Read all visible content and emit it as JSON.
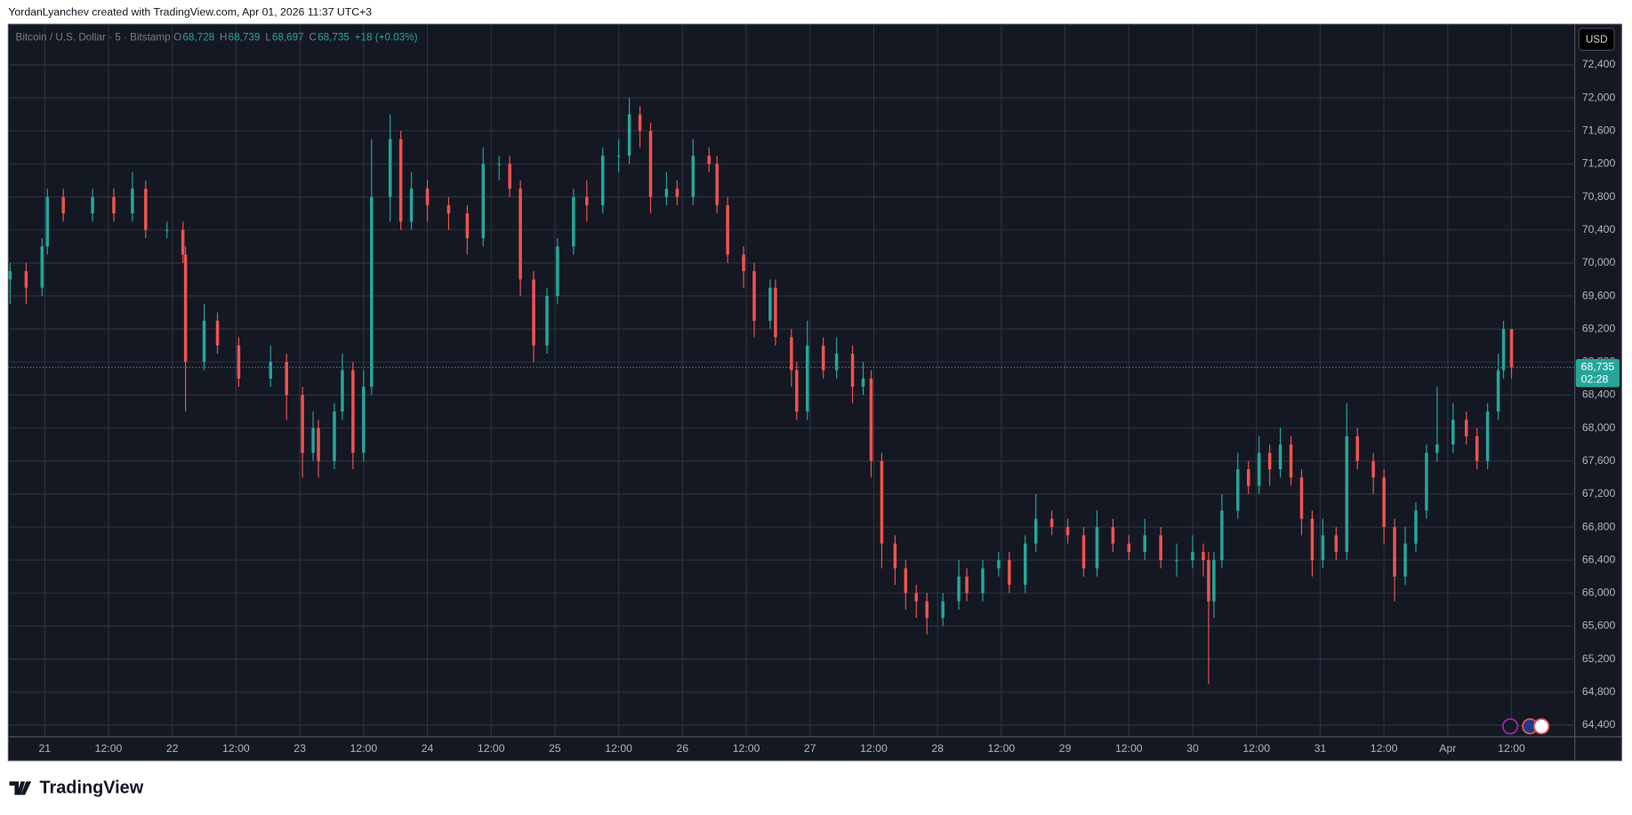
{
  "header": {
    "attribution": "YordanLyanchev created with TradingView.com, Apr 01, 2026 11:37 UTC+3",
    "symbol": "Bitcoin / U.S. Dollar · 5 · Bitstamp",
    "ohlc": [
      {
        "key": "O",
        "value": "68,728"
      },
      {
        "key": "H",
        "value": "68,739"
      },
      {
        "key": "L",
        "value": "68,697"
      },
      {
        "key": "C",
        "value": "68,735"
      }
    ],
    "change": "+18 (+0.03%)",
    "currency": "USD"
  },
  "footer": {
    "logo": "TradingView"
  },
  "chart_data": {
    "type": "candlestick",
    "up_color": "#26a69a",
    "down_color": "#ef5350",
    "grid": true,
    "xlim": [
      -6.85,
      287.9
    ],
    "ylim": [
      64260,
      72880
    ],
    "xticks": [
      {
        "value": 0,
        "label": "21"
      },
      {
        "value": 12,
        "label": "12:00"
      },
      {
        "value": 24,
        "label": "22"
      },
      {
        "value": 36,
        "label": "12:00"
      },
      {
        "value": 48,
        "label": "23"
      },
      {
        "value": 60,
        "label": "12:00"
      },
      {
        "value": 72,
        "label": "24"
      },
      {
        "value": 84,
        "label": "12:00"
      },
      {
        "value": 96,
        "label": "25"
      },
      {
        "value": 108,
        "label": "12:00"
      },
      {
        "value": 120,
        "label": "26"
      },
      {
        "value": 132,
        "label": "12:00"
      },
      {
        "value": 144,
        "label": "27"
      },
      {
        "value": 156,
        "label": "12:00"
      },
      {
        "value": 168,
        "label": "28"
      },
      {
        "value": 180,
        "label": "12:00"
      },
      {
        "value": 192,
        "label": "29"
      },
      {
        "value": 204,
        "label": "12:00"
      },
      {
        "value": 216,
        "label": "30"
      },
      {
        "value": 228,
        "label": "12:00"
      },
      {
        "value": 240,
        "label": "31"
      },
      {
        "value": 252,
        "label": "12:00"
      },
      {
        "value": 264,
        "label": "Apr"
      },
      {
        "value": 276,
        "label": "12:00"
      }
    ],
    "yticks": [
      {
        "value": 64400,
        "label": "64,400"
      },
      {
        "value": 64800,
        "label": "64,800"
      },
      {
        "value": 65200,
        "label": "65,200"
      },
      {
        "value": 65600,
        "label": "65,600"
      },
      {
        "value": 66000,
        "label": "66,000"
      },
      {
        "value": 66400,
        "label": "66,400"
      },
      {
        "value": 66800,
        "label": "66,800"
      },
      {
        "value": 67200,
        "label": "67,200"
      },
      {
        "value": 67600,
        "label": "67,600"
      },
      {
        "value": 68000,
        "label": "68,000"
      },
      {
        "value": 68400,
        "label": "68,400"
      },
      {
        "value": 68800,
        "label": "68,800"
      },
      {
        "value": 69200,
        "label": "69,200"
      },
      {
        "value": 69600,
        "label": "69,600"
      },
      {
        "value": 70000,
        "label": "70,000"
      },
      {
        "value": 70400,
        "label": "70,400"
      },
      {
        "value": 70800,
        "label": "70,800"
      },
      {
        "value": 71200,
        "label": "71,200"
      },
      {
        "value": 71600,
        "label": "71,600"
      },
      {
        "value": 72000,
        "label": "72,000"
      },
      {
        "value": 72400,
        "label": "72,400"
      }
    ],
    "last_price": {
      "value": 68735,
      "label": "68,735"
    },
    "countdown": "02:28",
    "x": [
      -6.5,
      -3.5,
      -0.5,
      0.5,
      3.5,
      9,
      13,
      16.5,
      19,
      23,
      26,
      26.5,
      30,
      32.5,
      36.5,
      42.5,
      45.5,
      48.5,
      50.5,
      51.5,
      54.5,
      56,
      58,
      60,
      61.5,
      65,
      67,
      69,
      72,
      76,
      79.5,
      82.5,
      85.5,
      87.5,
      89.5,
      92,
      94.5,
      96.5,
      99.5,
      102,
      105,
      108,
      110,
      112,
      114,
      117,
      119,
      122,
      125,
      126.5,
      128.5,
      131.5,
      133.5,
      136.5,
      137.5,
      140.5,
      141.5,
      143.5,
      146.5,
      149,
      152,
      154,
      155.5,
      157.5,
      160,
      162,
      164,
      166,
      169,
      172,
      173.5,
      176.5,
      179.5,
      181.5,
      184.5,
      186.5,
      189.5,
      192.5,
      195.5,
      198,
      201,
      204,
      207,
      210,
      213,
      216,
      218,
      219,
      220,
      221.5,
      224.5,
      226.5,
      228.5,
      230.5,
      232.5,
      234.5,
      236.5,
      238.5,
      240.5,
      243,
      245,
      247,
      250,
      252,
      254,
      256,
      258,
      260,
      262,
      265,
      267.5,
      269.5,
      271.5,
      273.5,
      274.5,
      276
    ],
    "open": [
      69800,
      69900,
      69700,
      70200,
      70800,
      70600,
      70800,
      70600,
      70900,
      70400,
      70400,
      70100,
      68800,
      69300,
      69000,
      68600,
      68800,
      68400,
      67700,
      68000,
      67600,
      68200,
      68700,
      67700,
      68500,
      70800,
      71500,
      70500,
      70900,
      70700,
      70600,
      70300,
      71200,
      71200,
      70900,
      69800,
      69000,
      69600,
      70200,
      70800,
      70700,
      71300,
      71300,
      71800,
      71600,
      70800,
      70900,
      70800,
      71300,
      71200,
      70700,
      70100,
      69900,
      69300,
      69700,
      69100,
      68700,
      68200,
      69000,
      68700,
      68900,
      68500,
      68600,
      67600,
      66600,
      66300,
      66000,
      65900,
      65700,
      65900,
      66200,
      66000,
      66300,
      66400,
      66100,
      66600,
      66900,
      66800,
      66700,
      66300,
      66800,
      66600,
      66500,
      66700,
      66400,
      66400,
      66500,
      66400,
      65900,
      66400,
      67000,
      67500,
      67300,
      67700,
      67500,
      67800,
      67400,
      66900,
      66400,
      66700,
      66500,
      67900,
      67600,
      67400,
      66800,
      66200,
      66600,
      67000,
      67700,
      67800,
      68100,
      67900,
      67600,
      68200,
      68700,
      69200
    ],
    "high": [
      70000,
      70000,
      70300,
      70900,
      70900,
      70900,
      70900,
      71100,
      71000,
      70500,
      70500,
      70200,
      69500,
      69400,
      69100,
      69000,
      68900,
      68500,
      68200,
      68100,
      68300,
      68900,
      68800,
      68700,
      71500,
      71800,
      71600,
      71100,
      71000,
      70800,
      70700,
      71400,
      71300,
      71300,
      71000,
      69900,
      69700,
      70300,
      70900,
      71000,
      71400,
      71500,
      72000,
      71900,
      71700,
      71100,
      71000,
      71500,
      71400,
      71300,
      70800,
      70200,
      70000,
      69800,
      69800,
      69200,
      68800,
      69300,
      69100,
      69100,
      69000,
      68800,
      68700,
      67700,
      66700,
      66400,
      66100,
      66000,
      66000,
      66400,
      66300,
      66400,
      66500,
      66500,
      66700,
      67200,
      67000,
      66900,
      66800,
      67000,
      66900,
      66700,
      66900,
      66800,
      66600,
      66700,
      66600,
      66500,
      66500,
      67200,
      67700,
      67600,
      67900,
      67800,
      68000,
      67900,
      67500,
      67000,
      66900,
      66800,
      68300,
      68000,
      67700,
      67500,
      66900,
      66800,
      67100,
      67800,
      68500,
      68300,
      68200,
      68000,
      68300,
      68900,
      69300,
      69200
    ],
    "low": [
      69500,
      69500,
      69600,
      70100,
      70500,
      70500,
      70500,
      70500,
      70300,
      70300,
      70000,
      68200,
      68700,
      68900,
      68500,
      68500,
      68100,
      67400,
      67600,
      67400,
      67500,
      68100,
      67500,
      67600,
      68400,
      70500,
      70400,
      70400,
      70500,
      70400,
      70100,
      70200,
      71000,
      70800,
      69600,
      68800,
      68900,
      69500,
      70100,
      70500,
      70600,
      71100,
      71200,
      71400,
      70600,
      70700,
      70700,
      70700,
      71100,
      70600,
      70000,
      69700,
      69100,
      69200,
      69000,
      68500,
      68100,
      68100,
      68600,
      68600,
      68300,
      68400,
      67400,
      66300,
      66100,
      65800,
      65700,
      65500,
      65600,
      65800,
      65900,
      65900,
      66200,
      66000,
      66000,
      66500,
      66700,
      66600,
      66200,
      66200,
      66500,
      66400,
      66400,
      66300,
      66200,
      66300,
      66200,
      64900,
      65700,
      66300,
      66900,
      67200,
      67200,
      67300,
      67400,
      67300,
      66700,
      66200,
      66300,
      66400,
      66400,
      67500,
      67200,
      66600,
      65900,
      66100,
      66500,
      66900,
      67600,
      67700,
      67800,
      67500,
      67500,
      68100,
      68600,
      68600
    ],
    "close": [
      69900,
      69700,
      70200,
      70800,
      70600,
      70800,
      70600,
      70900,
      70400,
      70400,
      70100,
      68800,
      69300,
      69000,
      68600,
      68800,
      68400,
      67700,
      68000,
      67600,
      68200,
      68700,
      67700,
      68500,
      70800,
      71500,
      70500,
      70900,
      70700,
      70600,
      70300,
      71200,
      71200,
      70900,
      69800,
      69000,
      69600,
      70200,
      70800,
      70700,
      71300,
      71300,
      71800,
      71600,
      70800,
      70900,
      70800,
      71300,
      71200,
      70700,
      70100,
      69900,
      69300,
      69700,
      69100,
      68700,
      68200,
      69000,
      68700,
      68900,
      68500,
      68600,
      67600,
      66600,
      66300,
      66000,
      65900,
      65700,
      65900,
      66200,
      66000,
      66300,
      66400,
      66100,
      66600,
      66900,
      66800,
      66700,
      66300,
      66800,
      66600,
      66500,
      66700,
      66400,
      66400,
      66500,
      66400,
      65900,
      66400,
      67000,
      67500,
      67300,
      67700,
      67500,
      67800,
      67400,
      66900,
      66400,
      66700,
      66500,
      67900,
      67600,
      67400,
      66800,
      66200,
      66600,
      67000,
      67700,
      67800,
      68100,
      67900,
      67600,
      68200,
      68700,
      69200,
      68735
    ]
  }
}
